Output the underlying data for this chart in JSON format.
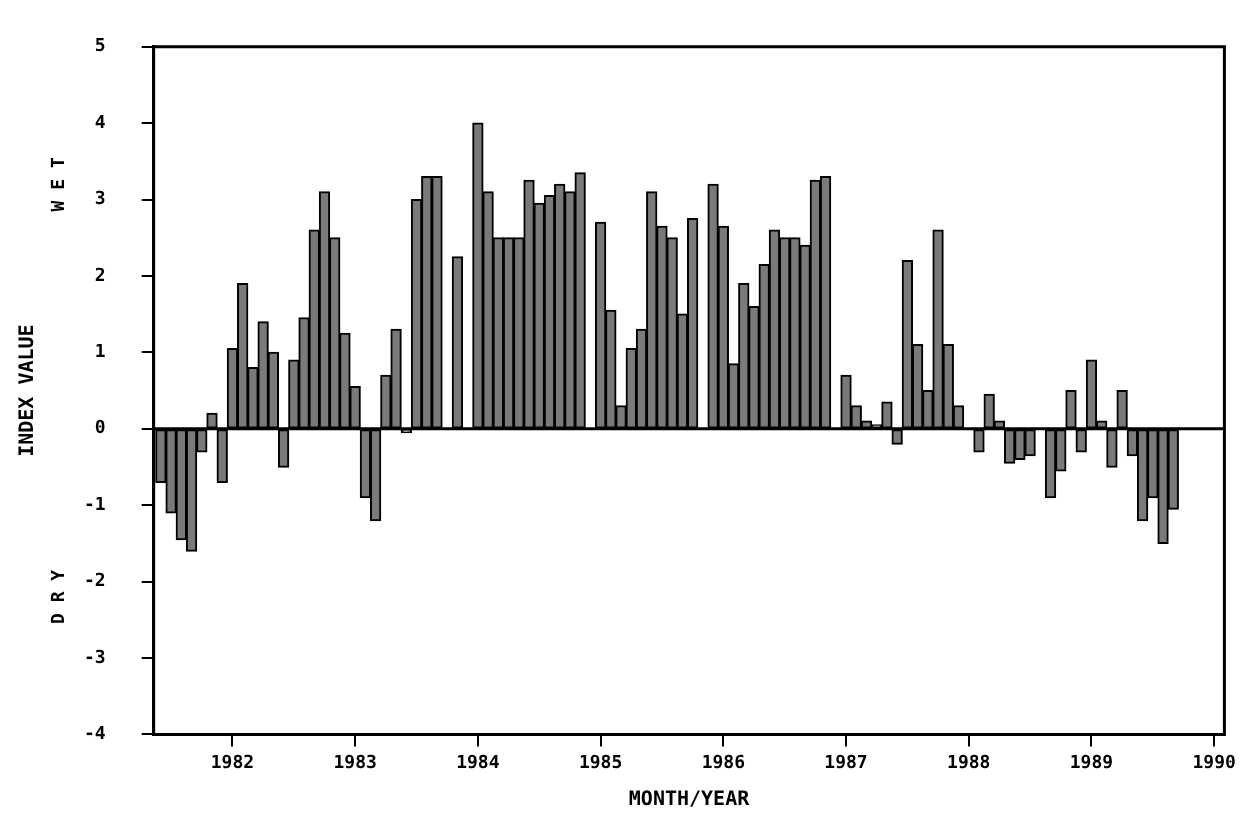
{
  "chart_data": {
    "type": "bar",
    "xlabel": "MONTH/YEAR",
    "ylabel": "INDEX VALUE",
    "annotations": [
      "W E T",
      "D R Y"
    ],
    "x": [
      "1981-06",
      "1981-07",
      "1981-08",
      "1981-09",
      "1981-10",
      "1981-11",
      "1981-12",
      "1982-01",
      "1982-02",
      "1982-03",
      "1982-04",
      "1982-05",
      "1982-06",
      "1982-07",
      "1982-08",
      "1982-09",
      "1982-10",
      "1982-11",
      "1982-12",
      "1983-01",
      "1983-02",
      "1983-03",
      "1983-04",
      "1983-05",
      "1983-06",
      "1983-07",
      "1983-08",
      "1983-09",
      "1983-10",
      "1983-11",
      "1983-12",
      "1984-01",
      "1984-02",
      "1984-03",
      "1984-04",
      "1984-05",
      "1984-06",
      "1984-07",
      "1984-08",
      "1984-09",
      "1984-10",
      "1984-11",
      "1984-12",
      "1985-01",
      "1985-02",
      "1985-03",
      "1985-04",
      "1985-05",
      "1985-06",
      "1985-07",
      "1985-08",
      "1985-09",
      "1985-10",
      "1985-11",
      "1985-12",
      "1986-01",
      "1986-02",
      "1986-03",
      "1986-04",
      "1986-05",
      "1986-06",
      "1986-07",
      "1986-08",
      "1986-09",
      "1986-10",
      "1986-11",
      "1986-12",
      "1987-01",
      "1987-02",
      "1987-03",
      "1987-04",
      "1987-05",
      "1987-06",
      "1987-07",
      "1987-08",
      "1987-09",
      "1987-10",
      "1987-11",
      "1987-12",
      "1988-01",
      "1988-02",
      "1988-03",
      "1988-04",
      "1988-05",
      "1988-06",
      "1988-07",
      "1988-08",
      "1988-09",
      "1988-10",
      "1988-11",
      "1988-12",
      "1989-01",
      "1989-02",
      "1989-03",
      "1989-04",
      "1989-05",
      "1989-06",
      "1989-07",
      "1989-08",
      "1989-09"
    ],
    "values": [
      -0.7,
      -1.1,
      -1.45,
      -1.6,
      -0.3,
      0.2,
      -0.7,
      1.05,
      1.9,
      0.8,
      1.4,
      1.0,
      -0.5,
      0.9,
      1.45,
      2.6,
      3.1,
      2.5,
      1.25,
      0.55,
      -0.9,
      -1.2,
      0.7,
      1.3,
      -0.05,
      3.0,
      3.3,
      3.3,
      0,
      2.25,
      0,
      4.0,
      3.1,
      2.5,
      2.5,
      2.5,
      3.25,
      2.95,
      3.05,
      3.2,
      3.1,
      3.35,
      0,
      2.7,
      1.55,
      0.3,
      1.05,
      1.3,
      3.1,
      2.65,
      2.5,
      1.5,
      2.75,
      0,
      3.2,
      2.65,
      0.85,
      1.9,
      1.6,
      2.15,
      2.6,
      2.5,
      2.5,
      2.4,
      3.25,
      3.3,
      0,
      0.7,
      0.3,
      0.1,
      0.05,
      0.35,
      -0.2,
      2.2,
      1.1,
      0.5,
      2.6,
      1.1,
      0.3,
      0,
      -0.3,
      0.45,
      0.1,
      -0.45,
      -0.4,
      -0.35,
      0,
      -0.9,
      -0.55,
      0.5,
      -0.3,
      0.9,
      0.1,
      -0.5,
      0.5,
      -0.35,
      -1.2,
      -0.9,
      -1.5,
      -1.05
    ],
    "color": "#7a7a7a",
    "xlim": [
      "1981-05-10",
      "1990-02"
    ],
    "xticks": [
      "1982",
      "1983",
      "1984",
      "1985",
      "1986",
      "1987",
      "1988",
      "1989",
      "1990"
    ],
    "ylim": [
      -4,
      5
    ],
    "yticks": [
      -4,
      -3,
      -2,
      -1,
      0,
      1,
      2,
      3,
      4,
      5
    ],
    "ref_lines": [
      {
        "axis": "y",
        "value": 0
      }
    ],
    "grid": false,
    "legend": false
  }
}
